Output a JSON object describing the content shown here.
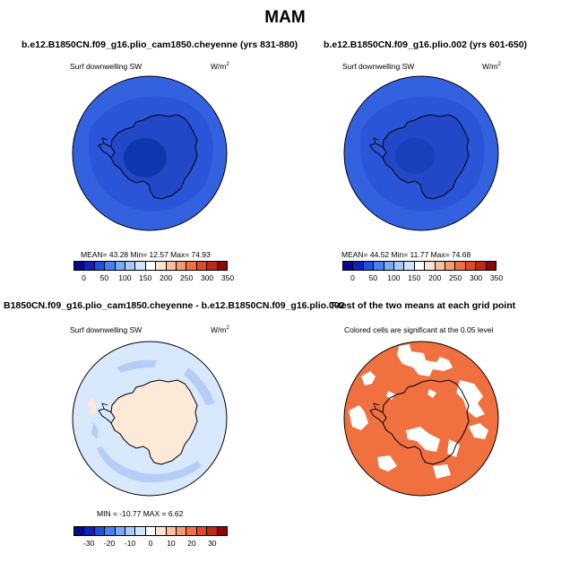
{
  "title": "MAM",
  "panels": [
    {
      "title": "b.e12.B1850CN.f09_g16.plio_cam1850.cheyenne (yrs 831-880)",
      "variable": "Surf downwelling SW",
      "units": "W/m",
      "units_exp": "2",
      "stats": "MEAN=   43.28   Min=   12.57   Max=   74.93",
      "colorbar_ticks": [
        "0",
        "50",
        "100",
        "150",
        "200",
        "250",
        "300",
        "350"
      ]
    },
    {
      "title": "b.e12.B1850CN.f09_g16.plio.002 (yrs 601-650)",
      "variable": "Surf downwelling SW",
      "units": "W/m",
      "units_exp": "2",
      "stats": "MEAN=   44.52   Min=   11.77   Max=   74.68",
      "colorbar_ticks": [
        "0",
        "50",
        "100",
        "150",
        "200",
        "250",
        "300",
        "350"
      ]
    },
    {
      "title": "B1850CN.f09_g16.plio_cam1850.cheyenne - b.e12.B1850CN.f09_g16.plio.002",
      "variable": "Surf downwelling SW",
      "units": "W/m",
      "units_exp": "2",
      "stats": "MIN = -10.77  MAX =    6.62",
      "colorbar_ticks": [
        "-30",
        "-20",
        "-10",
        "0",
        "10",
        "20",
        "30"
      ]
    },
    {
      "title": "T-test of the two means at each grid point",
      "variable": "Colored cells are significant at the 0.05 level"
    }
  ],
  "colors": {
    "abs_palette": [
      "#08088a",
      "#1020c0",
      "#2050e0",
      "#4a7ff0",
      "#7aaaf5",
      "#a8c8f8",
      "#d0e4fb",
      "#ffffff",
      "#fde3d0",
      "#f9c0a0",
      "#f59a75",
      "#ee7045",
      "#e04a2a",
      "#c02a15",
      "#8a0a08"
    ],
    "diff_palette": [
      "#08088a",
      "#1020c0",
      "#2050e0",
      "#4a7ff0",
      "#7aaaf5",
      "#a8c8f8",
      "#d0e4fb",
      "#ffffff",
      "#fde3d0",
      "#f9c0a0",
      "#f59a75",
      "#ee7045",
      "#e04a2a",
      "#c02a15",
      "#8a0a08"
    ],
    "ocean_outer": "#3361e0",
    "ocean_inner": "#2a55d8",
    "land_mid": "#2248c8",
    "land_core": "#1035b0",
    "diff_ocean": "#d8e8fd",
    "diff_band": "#b5cdf7",
    "diff_land": "#fde9d8",
    "sig": "#f07040"
  }
}
